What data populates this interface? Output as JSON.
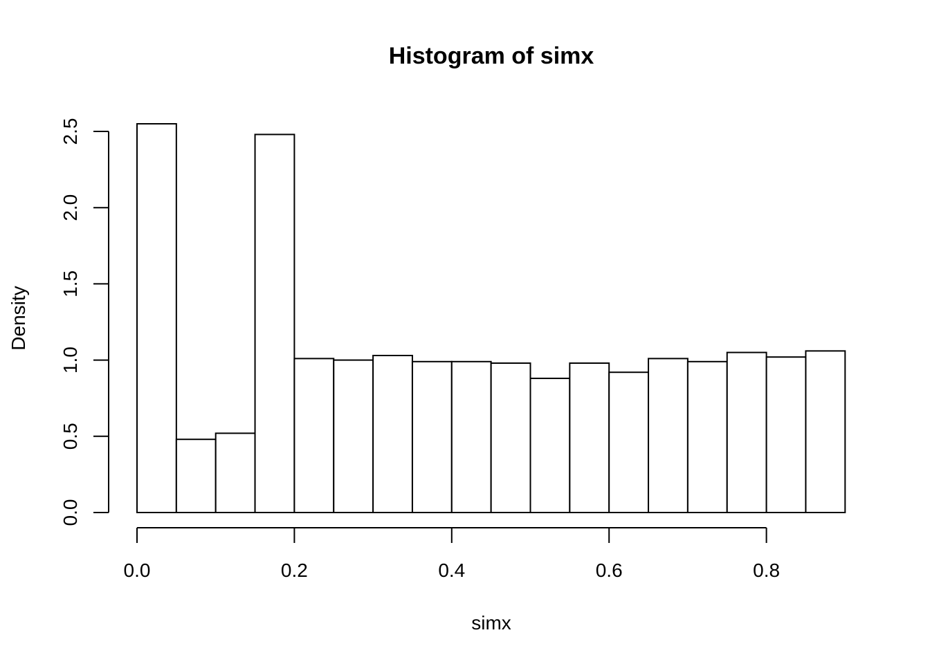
{
  "chart_data": {
    "type": "bar",
    "title": "Histogram of simx",
    "xlabel": "simx",
    "ylabel": "Density",
    "bin_width": 0.05,
    "bin_start": 0.0,
    "values": [
      2.55,
      0.48,
      0.52,
      2.48,
      1.01,
      1.0,
      1.03,
      0.99,
      0.99,
      0.98,
      0.88,
      0.98,
      0.92,
      1.01,
      0.99,
      1.05,
      1.02,
      1.06
    ],
    "xlim": [
      0.0,
      0.9
    ],
    "ylim": [
      0.0,
      2.5
    ],
    "xticks": [
      "0.0",
      "0.2",
      "0.4",
      "0.6",
      "0.8"
    ],
    "yticks": [
      "0.0",
      "0.5",
      "1.0",
      "1.5",
      "2.0",
      "2.5"
    ],
    "grid": false,
    "colors": {
      "bar_fill": "#ffffff",
      "bar_stroke": "#000000"
    }
  }
}
